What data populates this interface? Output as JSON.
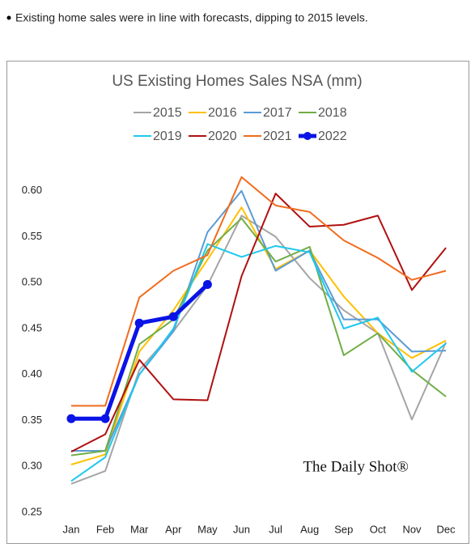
{
  "note": "Existing home sales were in line with forecasts, dipping to 2015 levels.",
  "chart_data": {
    "type": "line",
    "title": "US Existing Homes Sales NSA (mm)",
    "annotation": "The Daily Shot®",
    "categories": [
      "Jan",
      "Feb",
      "Mar",
      "Apr",
      "May",
      "Jun",
      "Jul",
      "Aug",
      "Sep",
      "Oct",
      "Nov",
      "Dec"
    ],
    "series": [
      {
        "name": "2015",
        "color": "#a5a5a5",
        "values": [
          0.281,
          0.295,
          0.405,
          0.447,
          0.497,
          0.573,
          0.55,
          0.505,
          0.47,
          0.445,
          0.351,
          0.435
        ]
      },
      {
        "name": "2016",
        "color": "#ffc000",
        "values": [
          0.302,
          0.313,
          0.425,
          0.47,
          0.525,
          0.582,
          0.515,
          0.535,
          0.485,
          0.445,
          0.418,
          0.437
        ]
      },
      {
        "name": "2017",
        "color": "#5b9bd5",
        "values": [
          0.317,
          0.317,
          0.4,
          0.447,
          0.555,
          0.6,
          0.513,
          0.535,
          0.46,
          0.46,
          0.425,
          0.426
        ]
      },
      {
        "name": "2018",
        "color": "#70ad47",
        "values": [
          0.312,
          0.317,
          0.433,
          0.46,
          0.535,
          0.57,
          0.523,
          0.539,
          0.421,
          0.445,
          0.405,
          0.376
        ]
      },
      {
        "name": "2019",
        "color": "#1fc8ef",
        "values": [
          0.284,
          0.31,
          0.4,
          0.45,
          0.542,
          0.528,
          0.54,
          0.533,
          0.45,
          0.462,
          0.403,
          0.434
        ]
      },
      {
        "name": "2020",
        "color": "#b01010",
        "values": [
          0.316,
          0.335,
          0.416,
          0.373,
          0.372,
          0.507,
          0.597,
          0.561,
          0.563,
          0.573,
          0.492,
          0.538
        ]
      },
      {
        "name": "2021",
        "color": "#f26b1d",
        "values": [
          0.366,
          0.366,
          0.484,
          0.513,
          0.53,
          0.615,
          0.584,
          0.577,
          0.546,
          0.527,
          0.503,
          0.513
        ]
      },
      {
        "name": "2022",
        "color": "#0a14e6",
        "values": [
          0.352,
          0.352,
          0.456,
          0.463,
          0.498,
          null,
          null,
          null,
          null,
          null,
          null,
          null
        ]
      }
    ],
    "ylim": [
      0.25,
      0.65
    ],
    "yticks": [
      0.25,
      {
        "value": 0.3,
        "label": "0.30"
      },
      0.35,
      {
        "value": 0.4,
        "label": "0.40"
      },
      0.45,
      {
        "value": 0.5,
        "label": "0.50"
      },
      0.55,
      {
        "value": 0.6,
        "label": "0.60"
      }
    ],
    "grid": false
  }
}
